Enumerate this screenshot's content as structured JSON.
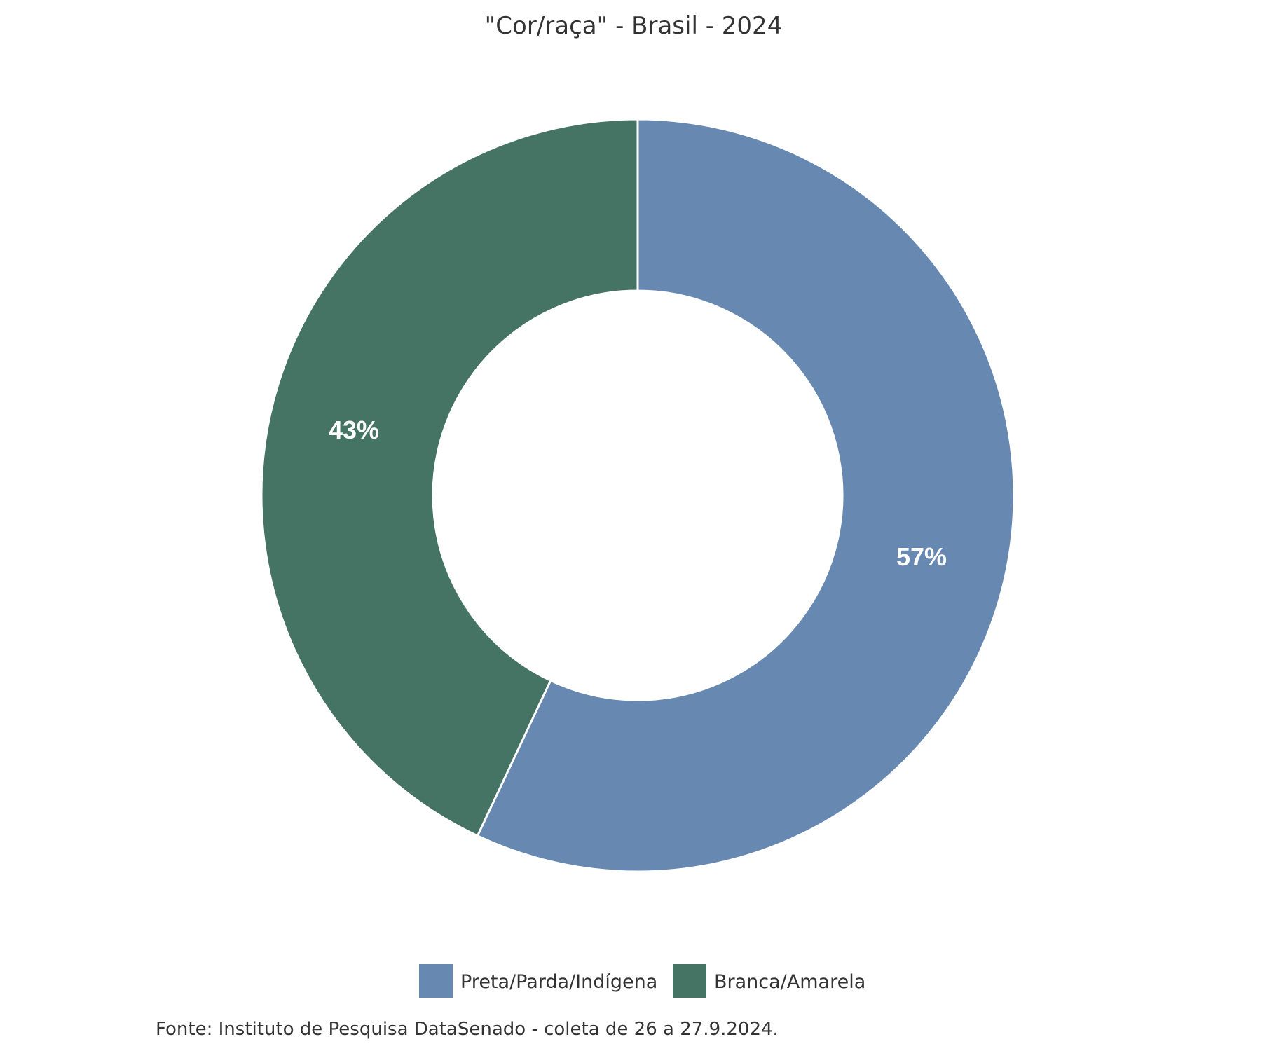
{
  "chart_data": {
    "type": "pie",
    "variant": "donut",
    "title": "\"Cor/raça\" - Brasil - 2024",
    "start_angle_deg": 0,
    "direction": "clockwise",
    "slices": [
      {
        "label": "Preta/Parda/Indígena",
        "value": 57,
        "display": "57%",
        "color": "#6788b0"
      },
      {
        "label": "Branca/Amarela",
        "value": 43,
        "display": "43%",
        "color": "#467464"
      }
    ],
    "legend": {
      "placement": "bottom"
    },
    "source": "Fonte: Instituto de Pesquisa DataSenado - coleta de 26 a 27.9.2024."
  }
}
